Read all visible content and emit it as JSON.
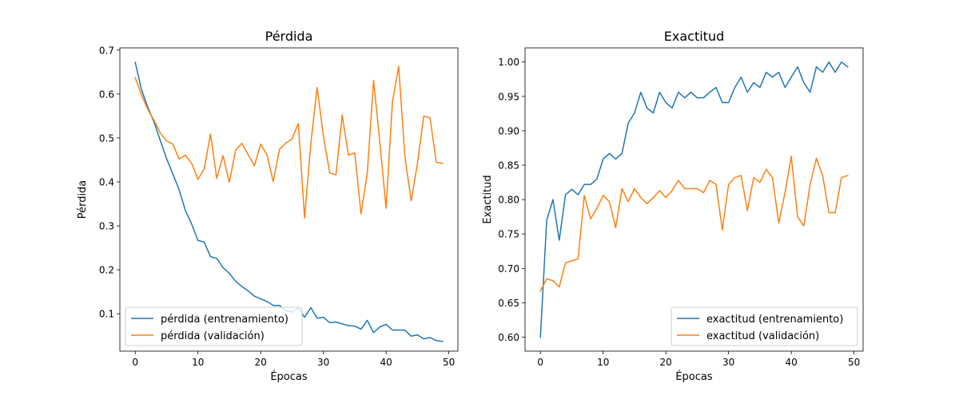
{
  "chart_data": [
    {
      "type": "line",
      "title": "Pérdida",
      "xlabel": "Épocas",
      "ylabel": "Pérdida",
      "xlim": [
        -2.45,
        51.45
      ],
      "ylim": [
        0.015,
        0.705
      ],
      "xticks": [
        0,
        10,
        20,
        30,
        40,
        50
      ],
      "yticks": [
        0.1,
        0.2,
        0.3,
        0.4,
        0.5,
        0.6,
        0.7
      ],
      "ytick_labels": [
        "0.1",
        "0.2",
        "0.3",
        "0.4",
        "0.5",
        "0.6",
        "0.7"
      ],
      "grid": false,
      "legend_position": "lower-left",
      "x": [
        0,
        1,
        2,
        3,
        4,
        5,
        6,
        7,
        8,
        9,
        10,
        11,
        12,
        13,
        14,
        15,
        16,
        17,
        18,
        19,
        20,
        21,
        22,
        23,
        24,
        25,
        26,
        27,
        28,
        29,
        30,
        31,
        32,
        33,
        34,
        35,
        36,
        37,
        38,
        39,
        40,
        41,
        42,
        43,
        44,
        45,
        46,
        47,
        48,
        49
      ],
      "series": [
        {
          "name": "pérdida (entrenamiento)",
          "color": "#1f77b4",
          "values": [
            0.672,
            0.61,
            0.57,
            0.536,
            0.494,
            0.453,
            0.418,
            0.382,
            0.335,
            0.304,
            0.267,
            0.263,
            0.23,
            0.226,
            0.205,
            0.192,
            0.174,
            0.162,
            0.152,
            0.14,
            0.134,
            0.128,
            0.119,
            0.119,
            0.107,
            0.104,
            0.113,
            0.092,
            0.114,
            0.09,
            0.092,
            0.08,
            0.081,
            0.077,
            0.073,
            0.072,
            0.065,
            0.085,
            0.057,
            0.07,
            0.076,
            0.063,
            0.063,
            0.063,
            0.049,
            0.052,
            0.043,
            0.046,
            0.039,
            0.037
          ]
        },
        {
          "name": "pérdida (validación)",
          "color": "#ff7f0e",
          "values": [
            0.637,
            0.598,
            0.565,
            0.54,
            0.511,
            0.493,
            0.486,
            0.452,
            0.461,
            0.442,
            0.406,
            0.43,
            0.509,
            0.408,
            0.46,
            0.399,
            0.472,
            0.488,
            0.462,
            0.437,
            0.486,
            0.462,
            0.401,
            0.474,
            0.488,
            0.498,
            0.533,
            0.318,
            0.488,
            0.615,
            0.505,
            0.421,
            0.416,
            0.552,
            0.461,
            0.466,
            0.327,
            0.421,
            0.631,
            0.49,
            0.34,
            0.581,
            0.663,
            0.457,
            0.357,
            0.442,
            0.55,
            0.546,
            0.445,
            0.442
          ]
        }
      ]
    },
    {
      "type": "line",
      "title": "Exactitud",
      "xlabel": "Épocas",
      "ylabel": "Exactitud",
      "xlim": [
        -2.45,
        51.45
      ],
      "ylim": [
        0.5798,
        1.0205
      ],
      "xticks": [
        0,
        10,
        20,
        30,
        40,
        50
      ],
      "yticks": [
        0.6,
        0.65,
        0.7,
        0.75,
        0.8,
        0.85,
        0.9,
        0.95,
        1.0
      ],
      "ytick_labels": [
        "0.60",
        "0.65",
        "0.70",
        "0.75",
        "0.80",
        "0.85",
        "0.90",
        "0.95",
        "1.00"
      ],
      "grid": false,
      "legend_position": "lower-right",
      "x": [
        0,
        1,
        2,
        3,
        4,
        5,
        6,
        7,
        8,
        9,
        10,
        11,
        12,
        13,
        14,
        15,
        16,
        17,
        18,
        19,
        20,
        21,
        22,
        23,
        24,
        25,
        26,
        27,
        28,
        29,
        30,
        31,
        32,
        33,
        34,
        35,
        36,
        37,
        38,
        39,
        40,
        41,
        42,
        43,
        44,
        45,
        46,
        47,
        48,
        49
      ],
      "series": [
        {
          "name": "exactitud (entrenamiento)",
          "color": "#1f77b4",
          "values": [
            0.6,
            0.77,
            0.8,
            0.741,
            0.807,
            0.815,
            0.807,
            0.822,
            0.822,
            0.83,
            0.859,
            0.867,
            0.859,
            0.867,
            0.911,
            0.926,
            0.956,
            0.933,
            0.926,
            0.956,
            0.941,
            0.933,
            0.956,
            0.948,
            0.956,
            0.948,
            0.948,
            0.956,
            0.963,
            0.941,
            0.941,
            0.963,
            0.978,
            0.956,
            0.97,
            0.963,
            0.985,
            0.978,
            0.985,
            0.963,
            0.978,
            0.993,
            0.97,
            0.956,
            0.993,
            0.985,
            1.0,
            0.985,
            1.0,
            0.993
          ]
        },
        {
          "name": "exactitud (validación)",
          "color": "#ff7f0e",
          "values": [
            0.667,
            0.685,
            0.682,
            0.673,
            0.708,
            0.711,
            0.714,
            0.806,
            0.772,
            0.787,
            0.806,
            0.797,
            0.759,
            0.816,
            0.797,
            0.816,
            0.803,
            0.794,
            0.803,
            0.813,
            0.803,
            0.813,
            0.828,
            0.816,
            0.816,
            0.816,
            0.81,
            0.828,
            0.822,
            0.756,
            0.822,
            0.832,
            0.835,
            0.784,
            0.832,
            0.825,
            0.844,
            0.832,
            0.766,
            0.81,
            0.863,
            0.775,
            0.762,
            0.822,
            0.86,
            0.835,
            0.781,
            0.781,
            0.832,
            0.835
          ]
        }
      ]
    }
  ]
}
